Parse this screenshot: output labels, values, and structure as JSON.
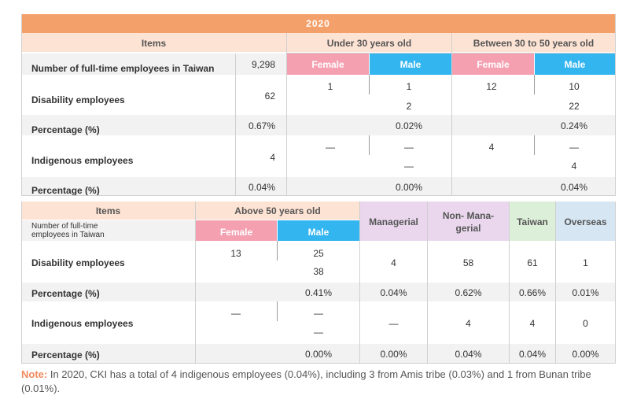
{
  "year": "2020",
  "colors": {
    "orange": "#f4a06b",
    "peach": "#fde3d4",
    "pink": "#f4a0b0",
    "blue": "#33b5f0",
    "purple": "#ead7ee",
    "green": "#dcefd8",
    "lightblue": "#d6e6f2",
    "stripe": "#f2f2f2"
  },
  "top": {
    "items_header": "Items",
    "under30_header": "Under 30 years old",
    "between_header": "Between 30 to 50 years old",
    "female": "Female",
    "male": "Male",
    "rows": {
      "fulltime": {
        "label": "Number of full-time employees in Taiwan",
        "total": "9,298"
      },
      "disability": {
        "label": "Disability employees",
        "total": "62",
        "u30_f": "1",
        "u30_m": "1",
        "u30_m2": "2",
        "b_f": "12",
        "b_m": "10",
        "b_m2": "22"
      },
      "pct1": {
        "label": "Percentage (%)",
        "total": "0.67%",
        "u30": "0.02%",
        "b": "0.24%"
      },
      "indigenous": {
        "label": "Indigenous employees",
        "total": "4",
        "u30_f": "—",
        "u30_m": "—",
        "u30_m2": "—",
        "b_f": "4",
        "b_m": "—",
        "b_m2": "4"
      },
      "pct2": {
        "label": "Percentage (%)",
        "total": "0.04%",
        "u30": "0.00%",
        "b": "0.04%"
      }
    }
  },
  "bottom": {
    "items_header": "Items",
    "above50_header": "Above 50 years old",
    "fulltime_label_1": "Number of full-time",
    "fulltime_label_2": "employees in Taiwan",
    "female": "Female",
    "male": "Male",
    "managerial": "Managerial",
    "nonmanagerial_1": "Non- Mana-",
    "nonmanagerial_2": "gerial",
    "taiwan": "Taiwan",
    "overseas": "Overseas",
    "rows": {
      "disability": {
        "label": "Disability employees",
        "f": "13",
        "m": "25",
        "m2": "38",
        "managerial": "4",
        "nonmanagerial": "58",
        "taiwan": "61",
        "overseas": "1"
      },
      "pct1": {
        "label": "Percentage (%)",
        "m": "0.41%",
        "managerial": "0.04%",
        "nonmanagerial": "0.62%",
        "taiwan": "0.66%",
        "overseas": "0.01%"
      },
      "indigenous": {
        "label": "Indigenous employees",
        "f": "—",
        "m": "—",
        "m2": "—",
        "managerial": "—",
        "nonmanagerial": "4",
        "taiwan": "4",
        "overseas": "0"
      },
      "pct2": {
        "label": "Percentage (%)",
        "m": "0.00%",
        "managerial": "0.00%",
        "nonmanagerial": "0.04%",
        "taiwan": "0.04%",
        "overseas": "0.00%"
      }
    }
  },
  "note": {
    "label": "Note:",
    "text": " In 2020, CKI has a total of 4 indigenous employees (0.04%), including 3 from Amis tribe (0.03%) and 1 from Bunan tribe (0.01%)."
  }
}
